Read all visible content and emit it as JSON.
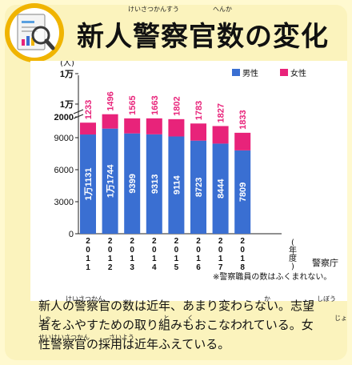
{
  "header": {
    "title": "新人警察官数の変化",
    "title_ruby": [
      {
        "text": "けいさつかんすう"
      },
      {
        "text": "へんか"
      }
    ]
  },
  "chart_data": {
    "type": "bar",
    "stacked": true,
    "categories": [
      "2011",
      "2012",
      "2013",
      "2014",
      "2015",
      "2016",
      "2017",
      "2018"
    ],
    "category_labels": [
      "2011",
      "2012",
      "2013",
      "2014",
      "2015",
      "2016",
      "2017",
      "2018"
    ],
    "x_unit": "(年度)",
    "y_unit": "(人)",
    "series": [
      {
        "name": "男性",
        "color": "#3a6fd2",
        "values": [
          11131,
          11744,
          9399,
          9313,
          9114,
          8723,
          8444,
          7809
        ],
        "labels": [
          "1万1131",
          "1万1744",
          "9399",
          "9313",
          "9114",
          "8723",
          "8444",
          "7809"
        ]
      },
      {
        "name": "女性",
        "color": "#e8237a",
        "values": [
          1233,
          1496,
          1565,
          1663,
          1802,
          1783,
          1827,
          1833
        ],
        "labels": [
          "1233",
          "1496",
          "1565",
          "1663",
          "1802",
          "1783",
          "1827",
          "1833"
        ]
      }
    ],
    "y_ticks": [
      {
        "value": 0,
        "label": "0"
      },
      {
        "value": 3000,
        "label": "3000"
      },
      {
        "value": 6000,
        "label": "6000"
      },
      {
        "value": 9000,
        "label": "9000"
      }
    ],
    "y_ticks_broken": [
      "2000",
      "1万",
      "1万"
    ],
    "axis_break": true,
    "legend_position": "top-right"
  },
  "footer": {
    "source": "警察庁",
    "note": "※警察職員の数はふくまれない。"
  },
  "body": {
    "lines": [
      "新人の警察官の数は近年、あまり変わらない。志望",
      "者をふやすための取り組みもおこなわれている。女",
      "性警察官の採用は近年ふえている。"
    ],
    "ruby": [
      {
        "line": 0,
        "text": "けいさつかん"
      },
      {
        "line": 0,
        "text": "か"
      },
      {
        "line": 0,
        "text": "しぼう"
      },
      {
        "line": 1,
        "text": "しゃ"
      },
      {
        "line": 1,
        "text": "と"
      },
      {
        "line": 1,
        "text": "く"
      },
      {
        "line": 1,
        "text": "じょ"
      },
      {
        "line": 2,
        "text": "せいけいさつかん"
      },
      {
        "line": 2,
        "text": "さいよう"
      }
    ]
  },
  "colors": {
    "male": "#3a6fd2",
    "female": "#e8237a",
    "card": "#fbf3bd",
    "logo_ring": "#f0b400"
  },
  "icons": [
    "magnifier-document-icon"
  ]
}
